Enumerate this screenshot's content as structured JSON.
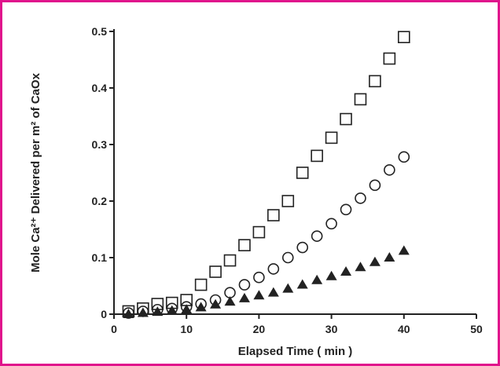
{
  "chart_data": {
    "type": "scatter",
    "title": "",
    "xlabel": "Elapsed Time ( min )",
    "ylabel": "Mole Ca²⁺ Delivered per m² of CaOx",
    "xlim": [
      0,
      50
    ],
    "ylim": [
      0,
      0.5
    ],
    "xticks": [
      "0",
      "10",
      "20",
      "30",
      "40",
      "50"
    ],
    "yticks": [
      "0",
      "0.1",
      "0.2",
      "0.3",
      "0.4",
      "0.5"
    ],
    "grid": false,
    "legend": "none",
    "series": [
      {
        "marker": "open-square",
        "color": "#222222",
        "x": [
          2,
          4,
          6,
          8,
          10,
          12,
          14,
          16,
          18,
          20,
          22,
          24,
          26,
          28,
          30,
          32,
          34,
          36,
          38,
          40
        ],
        "y": [
          0.005,
          0.01,
          0.018,
          0.02,
          0.025,
          0.052,
          0.075,
          0.095,
          0.122,
          0.145,
          0.175,
          0.2,
          0.25,
          0.28,
          0.312,
          0.345,
          0.38,
          0.412,
          0.452,
          0.49
        ]
      },
      {
        "marker": "open-circle",
        "color": "#222222",
        "x": [
          2,
          4,
          6,
          8,
          10,
          12,
          14,
          16,
          18,
          20,
          22,
          24,
          26,
          28,
          30,
          32,
          34,
          36,
          38,
          40
        ],
        "y": [
          0.002,
          0.005,
          0.008,
          0.01,
          0.013,
          0.018,
          0.025,
          0.038,
          0.052,
          0.065,
          0.08,
          0.1,
          0.118,
          0.138,
          0.16,
          0.185,
          0.205,
          0.228,
          0.255,
          0.278
        ]
      },
      {
        "marker": "filled-triangle",
        "color": "#222222",
        "x": [
          2,
          4,
          6,
          8,
          10,
          12,
          14,
          16,
          18,
          20,
          22,
          24,
          26,
          28,
          30,
          32,
          34,
          36,
          38,
          40
        ],
        "y": [
          0.0,
          0.002,
          0.004,
          0.006,
          0.008,
          0.012,
          0.017,
          0.022,
          0.028,
          0.033,
          0.038,
          0.045,
          0.052,
          0.06,
          0.067,
          0.075,
          0.083,
          0.092,
          0.1,
          0.112
        ]
      }
    ]
  }
}
